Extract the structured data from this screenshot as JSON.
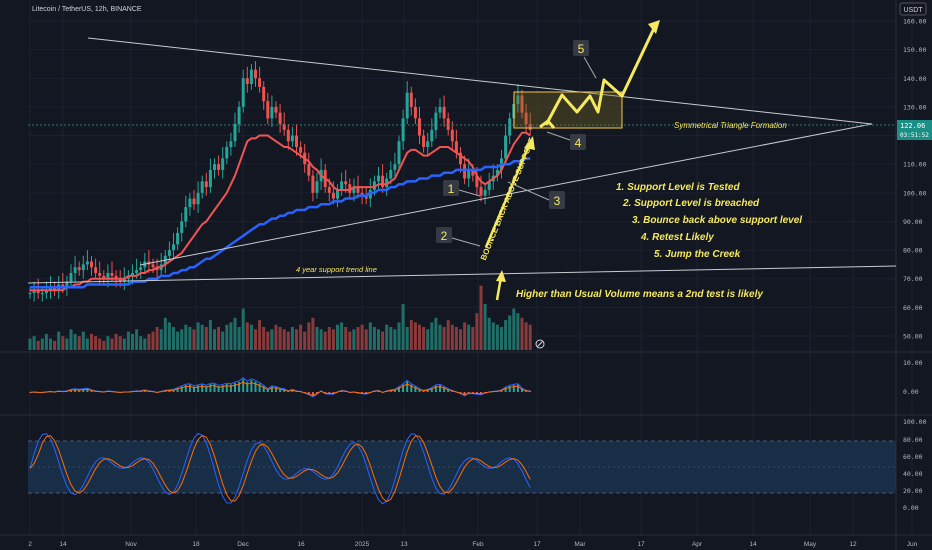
{
  "header": {
    "symbol_title": "Litecoin / TetherUS, 12h, BINANCE",
    "currency_button": "USDT"
  },
  "colors": {
    "background": "#131722",
    "grid": "#1c2030",
    "text": "#b2b5be",
    "candle_up": "#26a69a",
    "candle_down": "#ef5350",
    "ma_short": "#f05454",
    "ma_long": "#2962ff",
    "annotation": "#f5e960",
    "triangle_lines": "#d1d4dc",
    "stoch_k": "#2962ff",
    "stoch_d": "#ff6d00",
    "stoch_band": "#1e3a5f"
  },
  "price_axis": {
    "ticks": [
      "160.00",
      "150.00",
      "140.00",
      "130.00",
      "120.00",
      "110.00",
      "100.00",
      "90.00",
      "80.00",
      "70.00",
      "60.00",
      "50.00"
    ],
    "last_price": "122.06",
    "last_countdown": "03:51:52"
  },
  "time_axis": {
    "labels": [
      "2",
      "14",
      "Nov",
      "18",
      "Dec",
      "16",
      "2025",
      "13",
      "Feb",
      "17",
      "Mar",
      "17",
      "Apr",
      "14",
      "May",
      "12",
      "Jun"
    ]
  },
  "macd_axis": {
    "ticks": [
      "10.00",
      "0.00"
    ]
  },
  "stoch_axis": {
    "ticks": [
      "100.00",
      "80.00",
      "60.00",
      "40.00",
      "20.00",
      "0.00"
    ]
  },
  "annotations": {
    "pattern_label": "Symmetrical Triangle Formation",
    "trend_line_label": "4 year support trend line",
    "bounce_label": "BOUNCE BACK ABOVE SUPPORT",
    "volume_note": "Higher than Usual Volume means a 2nd test is likely",
    "step_badges": [
      "1",
      "2",
      "3",
      "4",
      "5"
    ],
    "steps": [
      "1. Support Level is Tested",
      "2. Support Level is breached",
      "3. Bounce back above support level",
      "4. Retest Likely",
      "5. Jump the Creek"
    ]
  },
  "chart_data": {
    "type": "candlestick",
    "title": "Litecoin / TetherUS, 12h, BINANCE",
    "ylim": [
      44,
      164
    ],
    "close_series": [
      65,
      66,
      65,
      65,
      66,
      67,
      66,
      68,
      67,
      69,
      72,
      74,
      73,
      75,
      76,
      74,
      72,
      71,
      70,
      72,
      71,
      70,
      69,
      70,
      71,
      72,
      73,
      74,
      76,
      75,
      74,
      73,
      75,
      78,
      80,
      82,
      86,
      90,
      95,
      98,
      96,
      100,
      104,
      102,
      108,
      110,
      108,
      112,
      116,
      118,
      124,
      130,
      140,
      138,
      143,
      140,
      137,
      132,
      126,
      130,
      128,
      124,
      122,
      118,
      120,
      116,
      114,
      110,
      106,
      100,
      104,
      108,
      102,
      100,
      98,
      101,
      104,
      103,
      100,
      102,
      100,
      99,
      98,
      101,
      104,
      106,
      102,
      105,
      108,
      110,
      118,
      126,
      135,
      130,
      126,
      120,
      116,
      118,
      122,
      128,
      130,
      126,
      122,
      118,
      114,
      110,
      105,
      108,
      106,
      102,
      99,
      101,
      104,
      106,
      108,
      112,
      120,
      126,
      131,
      134,
      128,
      124,
      122
    ],
    "ma_short_series": [
      66,
      66,
      66,
      66,
      66,
      66,
      66,
      66,
      66,
      67,
      67,
      68,
      68,
      69,
      69,
      70,
      70,
      70,
      70,
      70,
      70,
      70,
      70,
      70,
      71,
      71,
      71,
      72,
      72,
      73,
      73,
      74,
      74,
      75,
      76,
      77,
      78,
      79,
      81,
      83,
      85,
      87,
      89,
      90,
      92,
      94,
      96,
      98,
      100,
      103,
      106,
      110,
      114,
      118,
      119,
      119,
      120,
      120,
      120,
      119,
      118,
      117,
      116,
      116,
      115,
      114,
      113,
      112,
      111,
      109,
      108,
      106,
      105,
      104,
      102,
      101,
      101,
      101,
      101,
      102,
      102,
      102,
      102,
      102,
      102,
      103,
      103,
      103,
      104,
      105,
      108,
      111,
      114,
      115,
      115,
      114,
      113,
      113,
      114,
      115,
      116,
      116,
      116,
      115,
      114,
      113,
      112,
      111,
      109,
      106,
      104,
      103,
      104,
      105,
      106,
      108,
      111,
      114,
      117,
      119,
      121,
      121,
      120
    ],
    "ma_long_series": [
      67,
      67,
      67,
      67,
      67,
      67,
      67,
      67,
      67,
      67,
      67,
      67,
      67,
      67,
      68,
      68,
      68,
      68,
      68,
      68,
      68,
      68,
      68,
      68,
      68,
      69,
      69,
      69,
      69,
      70,
      70,
      70,
      71,
      71,
      71,
      72,
      72,
      73,
      73,
      74,
      74,
      75,
      76,
      77,
      77,
      78,
      79,
      80,
      81,
      82,
      83,
      84,
      85,
      86,
      87,
      88,
      89,
      89,
      90,
      91,
      91,
      92,
      92,
      93,
      93,
      94,
      94,
      94,
      95,
      95,
      95,
      96,
      96,
      96,
      97,
      97,
      97,
      98,
      98,
      98,
      99,
      99,
      99,
      100,
      100,
      101,
      101,
      101,
      102,
      102,
      103,
      103,
      104,
      104,
      104,
      105,
      105,
      105,
      106,
      106,
      106,
      107,
      107,
      107,
      108,
      108,
      108,
      108,
      108,
      108,
      108,
      109,
      109,
      109,
      109,
      110,
      110,
      110,
      111,
      111,
      111,
      112,
      112
    ],
    "volume_series": [
      5,
      6,
      4,
      5,
      7,
      5,
      4,
      8,
      6,
      5,
      9,
      7,
      6,
      8,
      5,
      7,
      6,
      5,
      4,
      6,
      5,
      7,
      6,
      5,
      8,
      7,
      9,
      6,
      5,
      7,
      8,
      10,
      9,
      14,
      12,
      10,
      8,
      9,
      11,
      10,
      9,
      12,
      11,
      10,
      13,
      9,
      10,
      8,
      11,
      12,
      14,
      10,
      18,
      12,
      11,
      9,
      13,
      10,
      8,
      9,
      11,
      10,
      9,
      8,
      10,
      9,
      11,
      8,
      12,
      14,
      10,
      9,
      8,
      10,
      9,
      11,
      12,
      10,
      8,
      9,
      10,
      11,
      9,
      12,
      10,
      9,
      8,
      11,
      10,
      9,
      12,
      20,
      10,
      13,
      12,
      11,
      10,
      9,
      12,
      14,
      11,
      10,
      13,
      11,
      10,
      9,
      12,
      11,
      10,
      16,
      28,
      20,
      14,
      12,
      11,
      10,
      13,
      15,
      18,
      16,
      14,
      12,
      11
    ],
    "pattern": "Symmetrical Triangle",
    "steps": [
      "1. Support Level is Tested",
      "2. Support Level is breached",
      "3. Bounce back above support level",
      "4. Retest Likely",
      "5. Jump the Creek"
    ]
  }
}
